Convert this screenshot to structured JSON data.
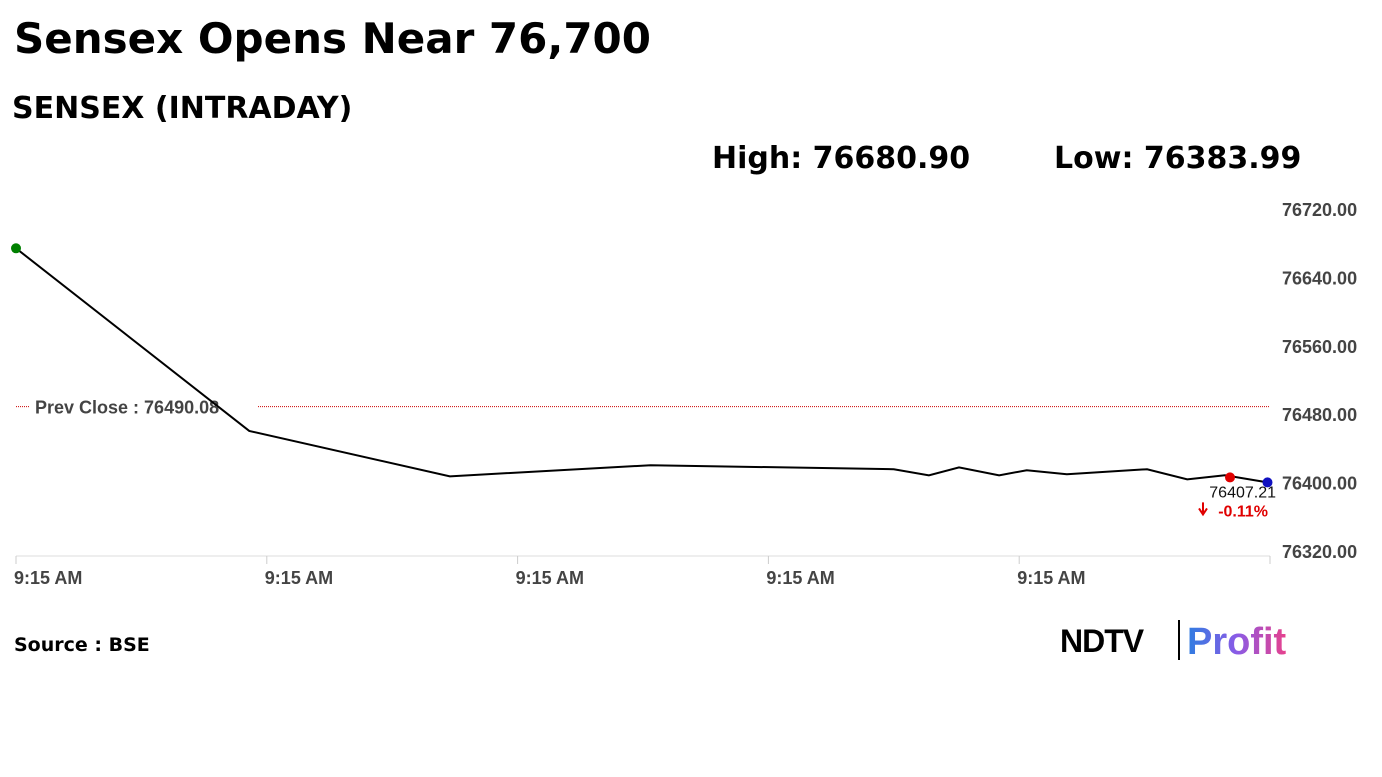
{
  "chart_data": {
    "type": "line",
    "title": "Sensex Opens Near 76,700",
    "subtitle": "SENSEX (INTRADAY)",
    "high": "High: 76680.90",
    "low": "Low: 76383.99",
    "x": [
      0,
      0.93,
      1.73,
      2.53,
      3.5,
      3.64,
      3.76,
      3.92,
      4.03,
      4.19,
      4.51,
      4.67,
      4.82,
      4.99
    ],
    "values": [
      76675.2,
      76461.6,
      76408.5,
      76421.5,
      76416.8,
      76409.7,
      76419,
      76409.7,
      76415.6,
      76410.9,
      76416.8,
      76405,
      76409.7,
      76401.4
    ],
    "color": "#000000",
    "xlim": [
      0,
      5
    ],
    "xticks": [
      {
        "value": 0,
        "label": "9:15 AM"
      },
      {
        "value": 1,
        "label": "9:15 AM"
      },
      {
        "value": 2,
        "label": "9:15 AM"
      },
      {
        "value": 3,
        "label": "9:15 AM"
      },
      {
        "value": 4,
        "label": "9:15 AM"
      }
    ],
    "ylim": [
      76320,
      76720
    ],
    "yticks": [
      {
        "value": 76320,
        "label": "76320.00"
      },
      {
        "value": 76400,
        "label": "76400.00"
      },
      {
        "value": 76480,
        "label": "76480.00"
      },
      {
        "value": 76560,
        "label": "76560.00"
      },
      {
        "value": 76640,
        "label": "76640.00"
      },
      {
        "value": 76720,
        "label": "76720.00"
      }
    ],
    "prev_close": {
      "value": 76490.08,
      "label": "Prev Close : 76490.08",
      "color": "#cc0000"
    },
    "last": {
      "value": 76407.21,
      "label": "76407.21",
      "change": "-0.11%"
    },
    "source": "Source : BSE",
    "logo": {
      "primary": "NDTV",
      "secondary": "Profit"
    }
  }
}
